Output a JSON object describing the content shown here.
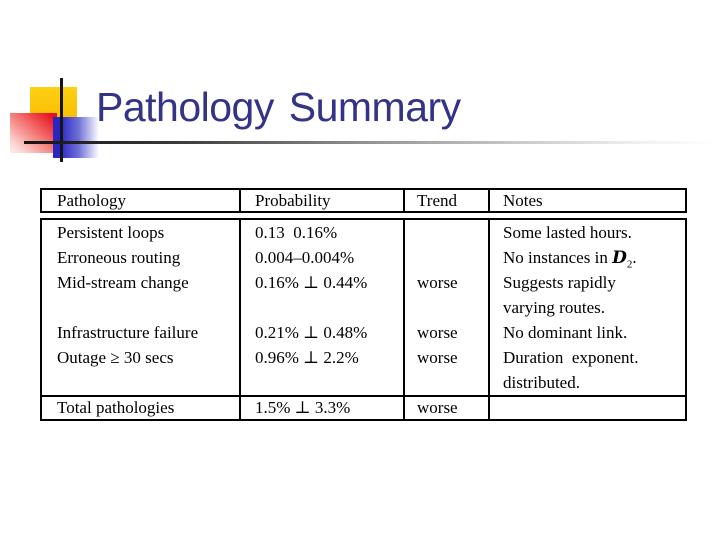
{
  "slide": {
    "title": "Pathology Summary"
  },
  "colors": {
    "title_text": "#333388",
    "accent_yellow": "#f6ba00",
    "accent_red": "#e8101a",
    "accent_blue": "#2b25c4",
    "table_border": "#000000"
  },
  "table": {
    "headers": {
      "pathology": "Pathology",
      "probability": "Probability",
      "trend": "Trend",
      "notes": "Notes"
    },
    "body_rows": [
      {
        "pathology": "Persistent loops",
        "probability": "0.13  0.16%",
        "trend": "",
        "notes": "Some lasted hours."
      },
      {
        "pathology": "Erroneous routing",
        "probability": "0.004–0.004%",
        "trend": "",
        "notes_prefix": "No instances in ",
        "notes_script_d": "D",
        "notes_subscript": "2",
        "notes_suffix": "."
      },
      {
        "pathology": "Mid-stream change",
        "probability": "0.16% ⊥ 0.44%",
        "trend": "worse",
        "notes": "Suggests rapidly"
      },
      {
        "pathology": "",
        "probability": "",
        "trend": "",
        "notes": "varying routes."
      },
      {
        "pathology": "Infrastructure failure",
        "probability": "0.21% ⊥ 0.48%",
        "trend": "worse",
        "notes": "No dominant link."
      },
      {
        "pathology": "Outage ≥ 30 secs",
        "probability": "0.96% ⊥ 2.2%",
        "trend": "worse",
        "notes": "Duration  exponent."
      },
      {
        "pathology": "",
        "probability": "",
        "trend": "",
        "notes": "distributed."
      }
    ],
    "total_row": {
      "pathology": "Total pathologies",
      "probability": "1.5% ⊥ 3.3%",
      "trend": "worse",
      "notes": ""
    }
  }
}
